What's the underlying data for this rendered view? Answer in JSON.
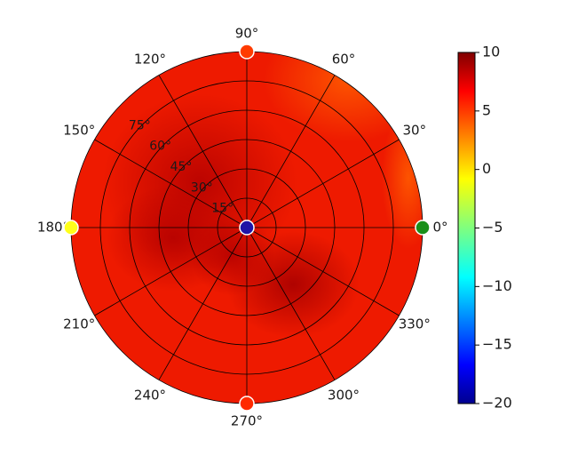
{
  "chart_data": {
    "type": "heatmap",
    "projection": "polar",
    "title": "",
    "angle_ticks": [
      "0°",
      "30°",
      "60°",
      "90°",
      "120°",
      "150°",
      "180°",
      "210°",
      "240°",
      "270°",
      "300°",
      "330°"
    ],
    "radial_ticks": [
      "15°",
      "30°",
      "45°",
      "60°",
      "75°"
    ],
    "radial_tick_values": [
      15,
      30,
      45,
      60,
      75
    ],
    "radial_max": 90,
    "grid": true,
    "colormap": "jet",
    "colorbar": {
      "min": -20,
      "max": 10,
      "ticks": [
        10,
        5,
        0,
        -5,
        -10,
        -15,
        -20
      ],
      "tick_labels": [
        "10",
        "5",
        "0",
        "−5",
        "−10",
        "−15",
        "−20"
      ],
      "placement": "right"
    },
    "field_description_values": {
      "base_level": 7.0,
      "dark_regions_level": 9.0,
      "upper_right_rim_level": 5.0
    },
    "markers": [
      {
        "name": "center",
        "angle": 0,
        "radius": 0,
        "value": -20,
        "color": "#1f14a6"
      },
      {
        "name": "rim-0",
        "angle": 0,
        "radius": 90,
        "value": -7,
        "color": "#1a8f1a"
      },
      {
        "name": "rim-90",
        "angle": 90,
        "radius": 90,
        "value": 6,
        "color": "#ff3b00"
      },
      {
        "name": "rim-180",
        "angle": 180,
        "radius": 90,
        "value": 0,
        "color": "#ffff1a"
      },
      {
        "name": "rim-270",
        "angle": 270,
        "radius": 90,
        "value": 7,
        "color": "#ff2a00"
      }
    ]
  }
}
